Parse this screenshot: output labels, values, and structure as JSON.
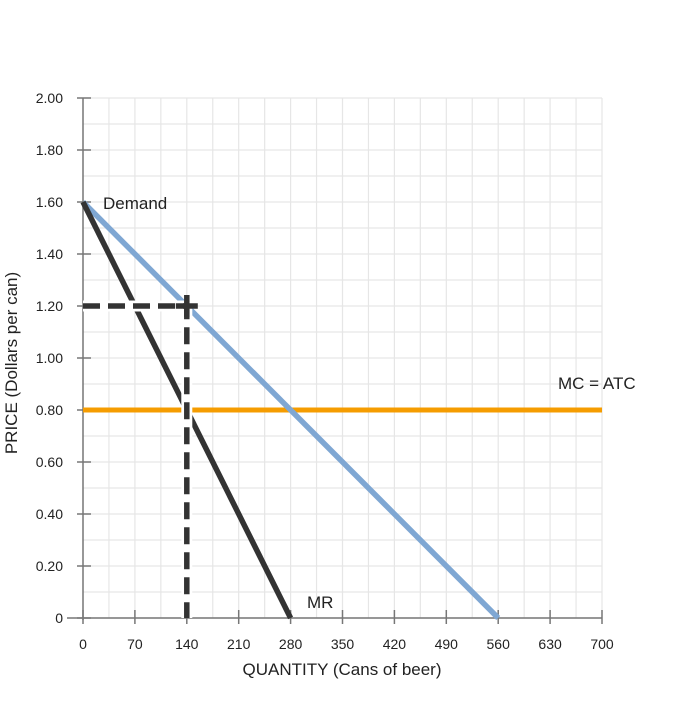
{
  "chart_data": {
    "type": "line",
    "title": "",
    "xlabel": "QUANTITY (Cans of beer)",
    "ylabel": "PRICE (Dollars per can)",
    "xlim": [
      0,
      700
    ],
    "ylim": [
      0,
      2.0
    ],
    "x_ticks": [
      0,
      70,
      140,
      210,
      280,
      350,
      420,
      490,
      560,
      630,
      700
    ],
    "x_tick_labels": [
      "0",
      "70",
      "140",
      "210",
      "280",
      "350",
      "420",
      "490",
      "560",
      "630",
      "700"
    ],
    "y_ticks": [
      0,
      0.2,
      0.4,
      0.6,
      0.8,
      1.0,
      1.2,
      1.4,
      1.6,
      1.8,
      2.0
    ],
    "y_tick_labels": [
      "0",
      "0.20",
      "0.40",
      "0.60",
      "0.80",
      "1.00",
      "1.20",
      "1.40",
      "1.60",
      "1.80",
      "2.00"
    ],
    "grid": true,
    "minor_grid_step": {
      "x": 35,
      "y": 0.1
    },
    "series": [
      {
        "name": "Demand",
        "color": "#7fa7d3",
        "points": [
          [
            0,
            1.6
          ],
          [
            560,
            0
          ]
        ]
      },
      {
        "name": "MR",
        "color": "#333333",
        "points": [
          [
            0,
            1.6
          ],
          [
            280,
            0
          ]
        ]
      },
      {
        "name": "MC = ATC",
        "color": "#f59c00",
        "points": [
          [
            0,
            0.8
          ],
          [
            700,
            0.8
          ]
        ]
      }
    ],
    "annotations": [
      {
        "type": "dashed-guide",
        "color": "#333333",
        "points": [
          [
            0,
            1.2
          ],
          [
            140,
            1.2
          ],
          [
            140,
            0
          ]
        ]
      }
    ]
  }
}
